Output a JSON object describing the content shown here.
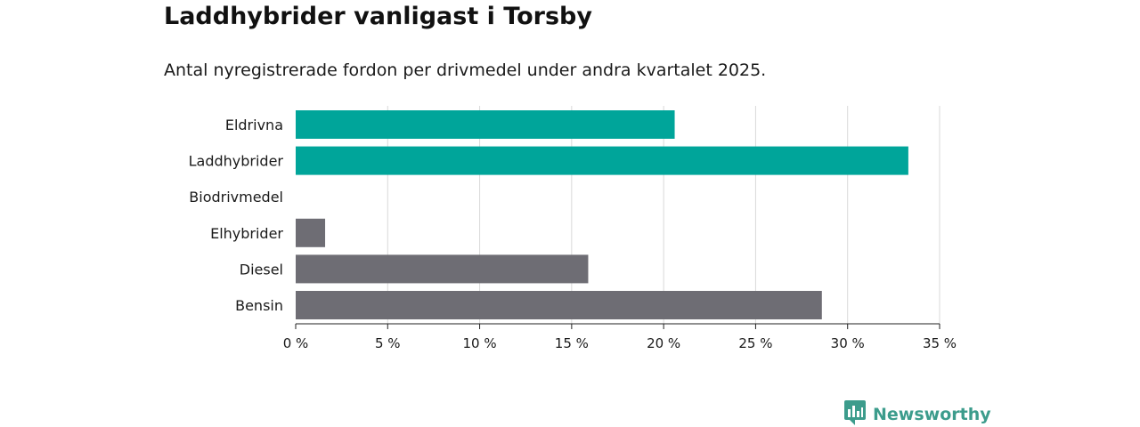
{
  "title": "Laddhybrider vanligast i Torsby",
  "subtitle": "Antal nyregistrerade fordon per drivmedel under andra kvartalet 2025.",
  "brand": {
    "name": "Newsworthy",
    "icon": "newsworthy-logo-icon",
    "color": "#3c9c8c"
  },
  "colors": {
    "highlight": "#00a59a",
    "default": "#6e6d74",
    "grid": "#d9d9d9",
    "axis": "#222222"
  },
  "chart_data": {
    "type": "bar",
    "orientation": "horizontal",
    "categories": [
      "Eldrivna",
      "Laddhybrider",
      "Biodrivmedel",
      "Elhybrider",
      "Diesel",
      "Bensin"
    ],
    "values": [
      20.6,
      33.3,
      0,
      1.6,
      15.9,
      28.6
    ],
    "bar_colors": [
      "#00a59a",
      "#00a59a",
      "#6e6d74",
      "#6e6d74",
      "#6e6d74",
      "#6e6d74"
    ],
    "xlim": [
      0,
      35
    ],
    "ticks": [
      0,
      5,
      10,
      15,
      20,
      25,
      30,
      35
    ],
    "tick_labels": [
      "0 %",
      "5 %",
      "10 %",
      "15 %",
      "20 %",
      "25 %",
      "30 %",
      "35 %"
    ],
    "xlabel": "",
    "ylabel": "",
    "grid": true,
    "legend": "none"
  }
}
